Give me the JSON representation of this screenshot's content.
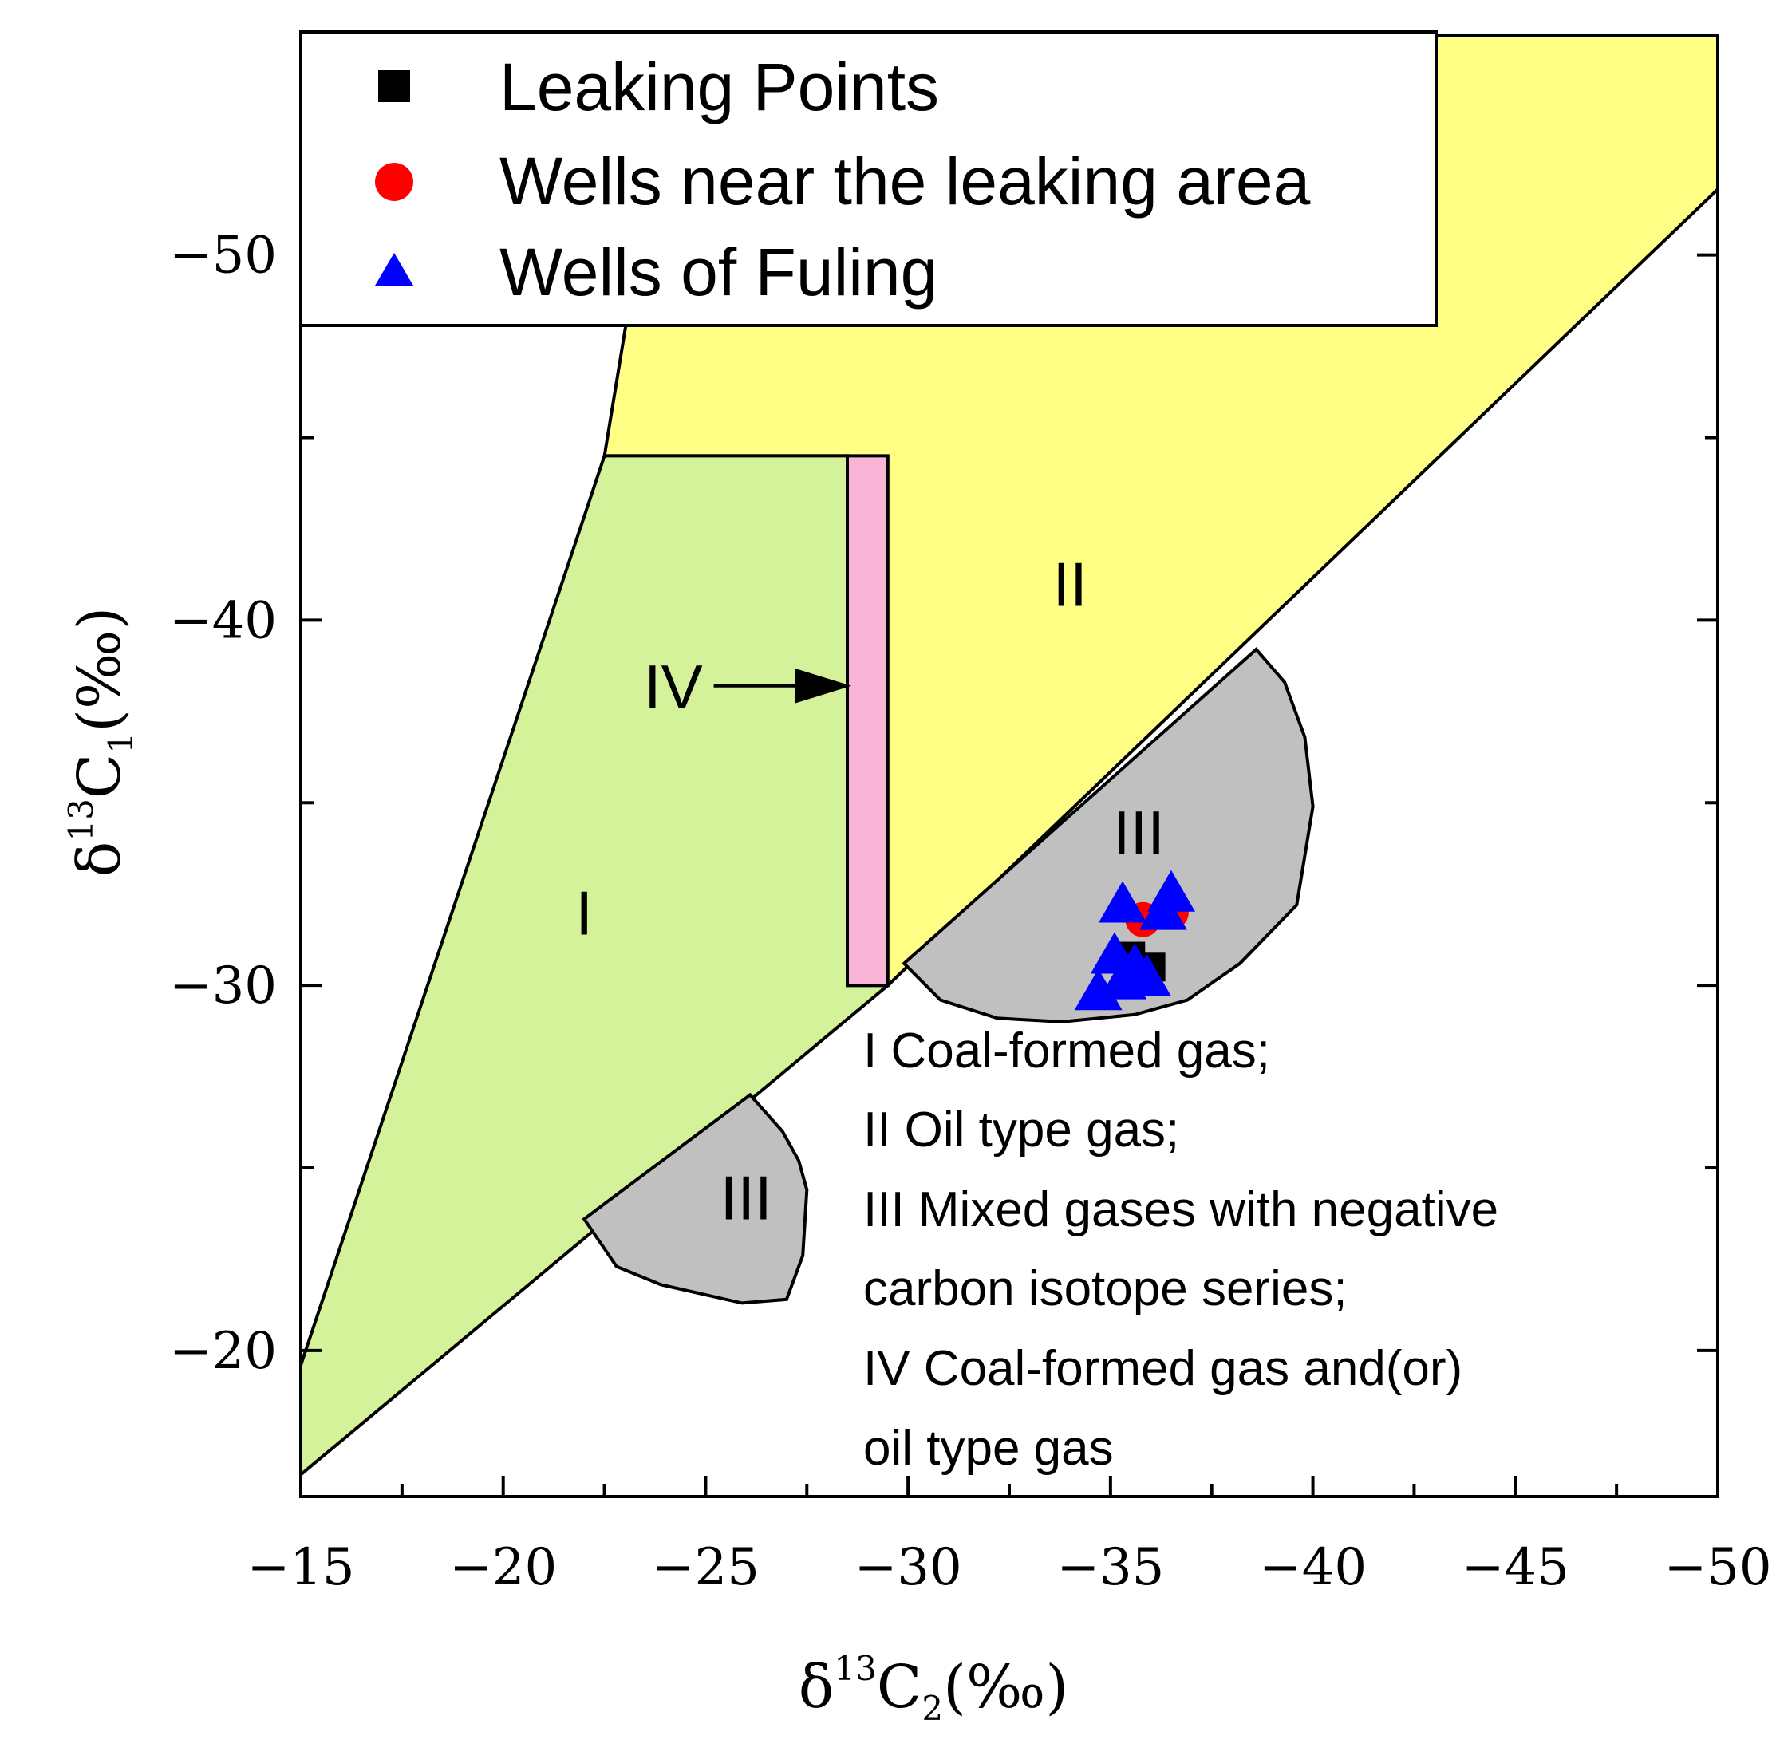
{
  "chart_data": {
    "type": "scatter",
    "title": "",
    "xlabel": {
      "delta": "δ",
      "sup": "13",
      "base": "C",
      "sub": "2",
      "unit": "(‰)"
    },
    "ylabel": {
      "delta": "δ",
      "sup": "13",
      "base": "C",
      "sub": "1",
      "unit": "(‰)"
    },
    "xlim": [
      -15,
      -50
    ],
    "ylim": [
      -16,
      -56
    ],
    "x_ticks": [
      -15,
      -20,
      -25,
      -30,
      -35,
      -40,
      -45,
      -50
    ],
    "x_tick_labels": [
      "−15",
      "−20",
      "−25",
      "−30",
      "−35",
      "−40",
      "−45",
      "−50"
    ],
    "y_ticks": [
      -20,
      -30,
      -40,
      -50
    ],
    "y_tick_labels": [
      "−20",
      "−30",
      "−40",
      "−50"
    ],
    "y_minor_ticks": [
      -25,
      -35,
      -45
    ],
    "x_minor_ticks": [
      -17.5,
      -22.5,
      -27.5,
      -32.5,
      -37.5,
      -42.5,
      -47.5
    ],
    "regions": [
      {
        "id": "I",
        "label": "I",
        "color": "#d4f29a",
        "label_at": [
          -22,
          -32
        ]
      },
      {
        "id": "II",
        "label": "II",
        "color": "#ffff85",
        "label_at": [
          -34,
          -41
        ]
      },
      {
        "id": "III-upper",
        "label": "III",
        "color": "#c0c0c0",
        "label_at": [
          -35.7,
          -34.2
        ]
      },
      {
        "id": "III-lower",
        "label": "III",
        "color": "#c0c0c0",
        "label_at": [
          -26,
          -24.2
        ]
      },
      {
        "id": "IV",
        "label": "IV",
        "color": "#f9b4d8",
        "label_at": [
          -24.2,
          -38.2
        ]
      }
    ],
    "series": [
      {
        "name": "Leaking Points",
        "marker": "square",
        "color": "#000000",
        "points": [
          [
            -36.0,
            -30.5
          ],
          [
            -35.5,
            -30.8
          ],
          [
            -35.8,
            -30.2
          ]
        ]
      },
      {
        "name": "Wells near the leaking area",
        "marker": "circle",
        "color": "#ff0000",
        "points": [
          [
            -36.5,
            -32.0
          ],
          [
            -35.8,
            -31.8
          ]
        ]
      },
      {
        "name": "Wells of Fuling",
        "marker": "triangle",
        "color": "#0000ff",
        "points": [
          [
            -35.3,
            -32.2
          ],
          [
            -36.3,
            -32.0
          ],
          [
            -36.5,
            -32.5
          ],
          [
            -35.1,
            -30.8
          ],
          [
            -35.6,
            -30.5
          ],
          [
            -35.9,
            -30.2
          ],
          [
            -34.7,
            -29.8
          ],
          [
            -35.3,
            -30.1
          ]
        ]
      }
    ],
    "notes": [
      "I Coal-formed gas;",
      "II Oil type gas;",
      "III Mixed gases with  negative",
      "carbon isotope  series;",
      "IV Coal-formed gas and(or)",
      "oil type gas"
    ]
  }
}
